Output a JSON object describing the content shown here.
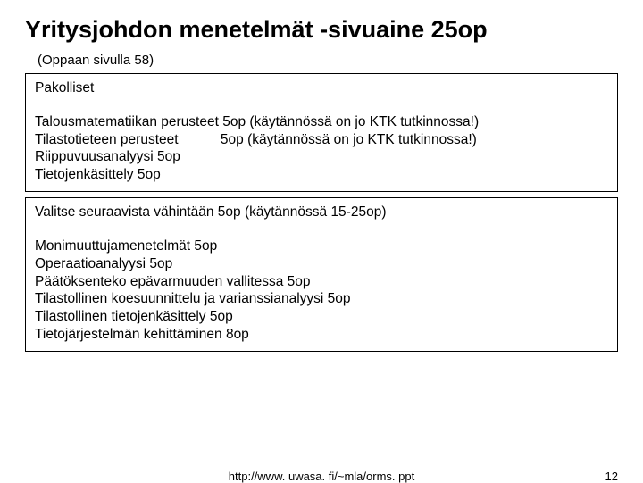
{
  "title": "Yritysjohdon menetelmät -sivuaine 25op",
  "subtitle": "(Oppaan sivulla 58)",
  "box1": {
    "heading": "Pakolliset",
    "lines": [
      "Talousmatematiikan perusteet 5op (käytännössä on jo KTK tutkinnossa!)",
      "Tilastotieteen perusteet           5op (käytännössä on jo KTK tutkinnossa!)",
      "Riippuvuusanalyysi  5op",
      "Tietojenkäsittely 5op"
    ]
  },
  "box2": {
    "heading": "Valitse seuraavista vähintään 5op (käytännössä 15-25op)",
    "lines": [
      "Monimuuttujamenetelmät 5op",
      "Operaatioanalyysi 5op",
      "Päätöksenteko epävarmuuden vallitessa 5op",
      "Tilastollinen koesuunnittelu ja varianssianalyysi 5op",
      "Tilastollinen tietojenkäsittely 5op",
      "Tietojärjestelmän kehittäminen 8op"
    ]
  },
  "footer": {
    "url": "http://www. uwasa. fi/~mla/orms. ppt",
    "page": "12"
  }
}
